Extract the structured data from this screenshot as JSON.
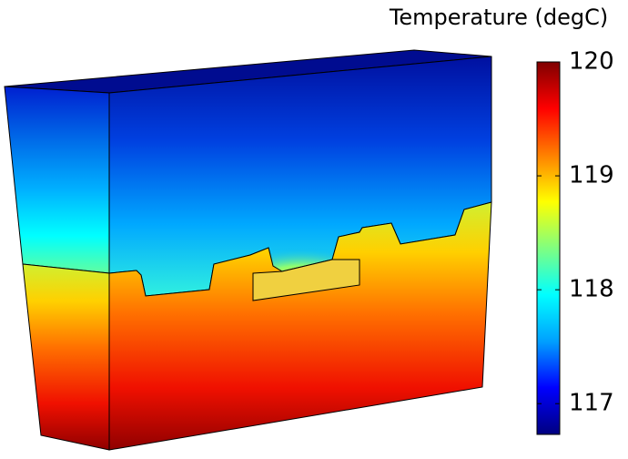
{
  "chart_data": {
    "type": "colorbar",
    "title": "Temperature (degC)",
    "clim": [
      116.73,
      120
    ],
    "ticks": [
      117,
      118,
      119,
      120
    ],
    "colormap": [
      "#00007f",
      "#0000ff",
      "#00a0ff",
      "#00ffff",
      "#80ff80",
      "#ffff00",
      "#ff8000",
      "#ff0000",
      "#7f0000"
    ]
  }
}
